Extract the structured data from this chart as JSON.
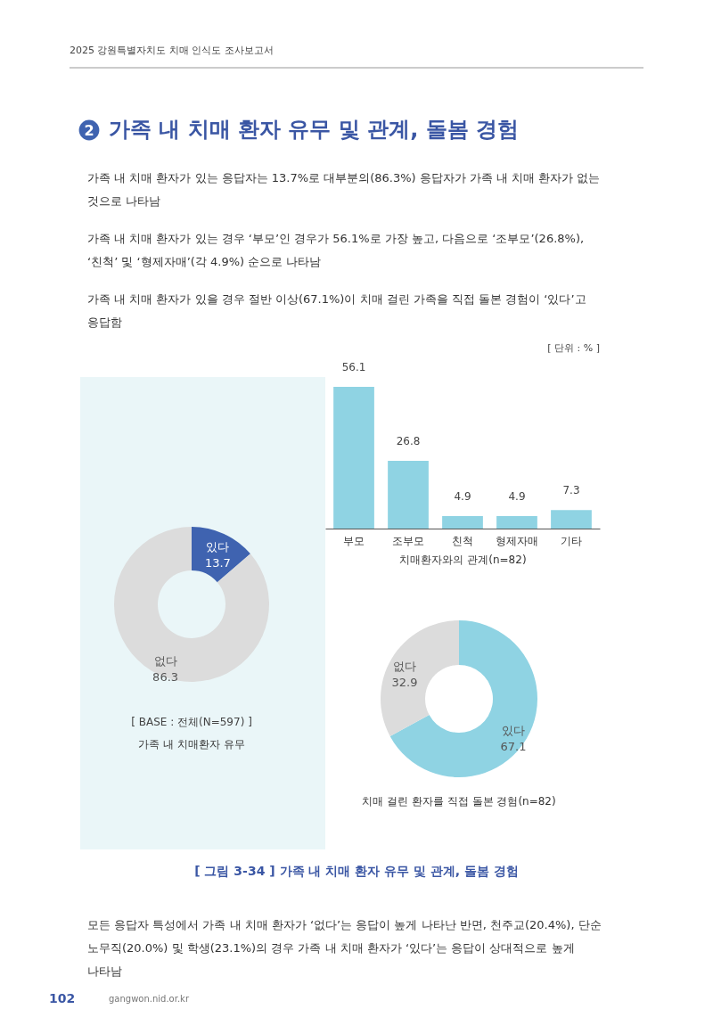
{
  "chart_data": [
    {
      "type": "other",
      "title": "가족 내 치매 환자 유무 및 관계, 돌봄 경험",
      "annotations": [
        "2025 강원특별자치도 치매 인식도 조사보고서",
        "2",
        "가족 내 치매 환자가 있는 응답자는 13.7%로 대부분의(86.3%) 응답자가 가족 내 치매 환자가 없는 것으로 나타남",
        "가족 내 치매 환자가 있는 경우 ‘부모’인 경우가 56.1%로 가장 높고, 다음으로 ‘조부모’(26.8%), ‘친척’ 및 ‘형제자매’(각 4.9%) 순으로 나타남",
        "가족 내 치매 환자가 있을 경우 절반 이상(67.1%)이 치매 걸린 가족을 직접 돌본 경험이 ‘있다’고 응답함",
        "[ 그림 3-34 ] 가족 내 치매 환자 유무 및 관계, 돌봄 경험",
        "모든 응답자 특성에서 가족 내 치매 환자가 ‘없다’는 응답이 높게 나타난 반면, 천주교(20.4%), 단순 노무직(20.0%) 및 학생(23.1%)의 경우 가족 내 치매 환자가 ‘있다’는 응답이 상대적으로 높게 나타남",
        "102",
        "gangwon.nid.or.kr"
      ]
    },
    {
      "type": "donut",
      "title": "가족 내 치매환자 유무",
      "annotations": [
        "[ BASE : 전체(N=597) ]"
      ],
      "categories": [
        "있다",
        "없다"
      ],
      "values": [
        13.7,
        86.3
      ],
      "colors": [
        "#3f63b0",
        "#dcdcdc"
      ],
      "data_labels": true
    },
    {
      "type": "bar",
      "xlabel": "치매환자와의 관계(n=82)",
      "annotations": [
        "[ 단위 : % ]"
      ],
      "categories": [
        "부모",
        "조부모",
        "친척",
        "형제자매",
        "기타"
      ],
      "values": [
        56.1,
        26.8,
        4.9,
        4.9,
        7.3
      ],
      "color": "#8fd3e3",
      "data_labels": true
    },
    {
      "type": "donut",
      "title": "치매 걸린 환자를 직접 돌본 경험(n=82)",
      "categories": [
        "있다",
        "없다"
      ],
      "values": [
        67.1,
        32.9
      ],
      "colors": [
        "#8fd3e3",
        "#dcdcdc"
      ],
      "data_labels": true
    }
  ]
}
